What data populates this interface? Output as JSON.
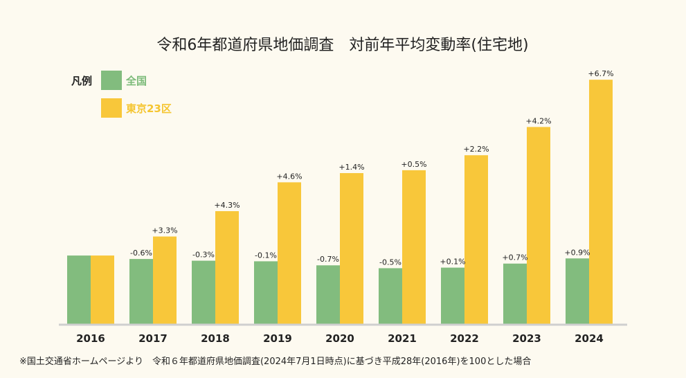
{
  "colors": {
    "national": "#82bc7e",
    "tokyo": "#f8c73a",
    "axis": "#cfcfcf",
    "background": "#fdfaf0"
  },
  "chart_data": {
    "type": "bar",
    "title": "令和6年都道府県地価調査　対前年平均変動率(住宅地)",
    "legend": {
      "heading": "凡例",
      "position": "top-left"
    },
    "categories": [
      "2016",
      "2017",
      "2018",
      "2019",
      "2020",
      "2021",
      "2022",
      "2023",
      "2024"
    ],
    "series": [
      {
        "name": "全国",
        "index_values": [
          100,
          99.4,
          99.1,
          99.0,
          98.3,
          97.8,
          97.9,
          98.6,
          99.5
        ],
        "labels": [
          "",
          "-0.6%",
          "-0.3%",
          "-0.1%",
          "-0.7%",
          "-0.5%",
          "+0.1%",
          "+0.7%",
          "+0.9%"
        ]
      },
      {
        "name": "東京23区",
        "index_values": [
          100,
          103.3,
          107.7,
          112.7,
          114.3,
          114.8,
          117.4,
          122.3,
          130.5
        ],
        "labels": [
          "",
          "+3.3%",
          "+4.3%",
          "+4.6%",
          "+1.4%",
          "+0.5%",
          "+2.2%",
          "+4.2%",
          "+6.7%"
        ]
      }
    ],
    "ylim": [
      88,
      131
    ],
    "grid": false,
    "footnote": "※国土交通省ホームページより　令和６年都道府県地価調査(2024年7月1日時点)に基づき平成28年(2016年)を100とした場合"
  }
}
